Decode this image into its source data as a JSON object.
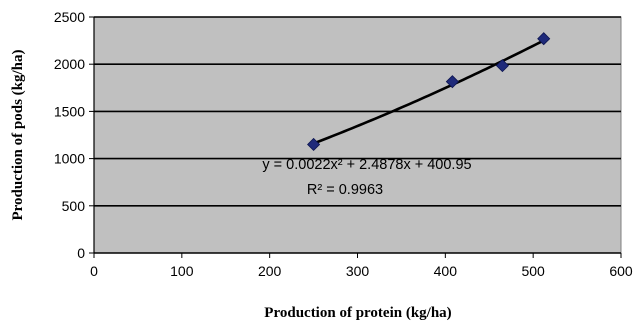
{
  "chart_data": {
    "type": "scatter",
    "xlabel": "Production of protein (kg/ha)",
    "ylabel": "Production of pods (kg/ha)",
    "xlim": [
      0,
      600
    ],
    "ylim": [
      0,
      2500
    ],
    "x_ticks": [
      "0",
      "100",
      "200",
      "300",
      "400",
      "500",
      "600"
    ],
    "y_ticks": [
      "0",
      "500",
      "1000",
      "1500",
      "2000",
      "2500"
    ],
    "grid": "horizontal",
    "plot_background": "#c0c0c0",
    "marker_color": "#1f2a7a",
    "trendline_color": "#000000",
    "series": [
      {
        "x": [
          250,
          408,
          465,
          512
        ],
        "y": [
          1150,
          1815,
          1985,
          2270
        ]
      }
    ],
    "trendline": {
      "equation": "y = 0.0022x² + 2.4878x + 400.95",
      "r2": "R² = 0.9963",
      "coefficients": {
        "a": 0.0022,
        "b": 2.4878,
        "c": 400.95
      },
      "x_range": [
        250,
        512
      ]
    }
  }
}
